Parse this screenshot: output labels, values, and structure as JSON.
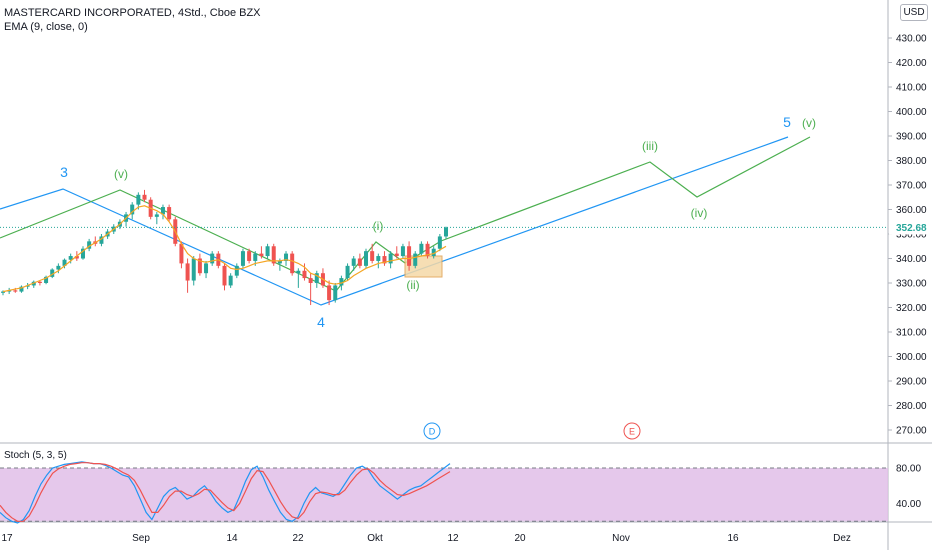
{
  "header": {
    "symbol_line": "MASTERCARD INCORPORATED, 4Std., Cboe BZX",
    "indicator_line": "EMA (9, close, 0)",
    "currency_button": "USD",
    "stoch_label": "Stoch (5, 3, 5)"
  },
  "colors": {
    "up": "#26a69a",
    "down": "#ef5350",
    "ema": "#f5a623",
    "wave_blue": "#2196f3",
    "wave_green": "#4caf50",
    "stoch_k": "#2196f3",
    "stoch_d": "#ef5350",
    "stoch_band": "#e1bee7"
  },
  "chart_data": [
    {
      "type": "candlestick",
      "ylim": [
        265,
        440
      ],
      "y_ticks": [
        "270.00",
        "280.00",
        "290.00",
        "300.00",
        "310.00",
        "320.00",
        "330.00",
        "340.00",
        "350.00",
        "360.00",
        "370.00",
        "380.00",
        "390.00",
        "400.00",
        "410.00",
        "420.00",
        "430.00"
      ],
      "x_ticks": [
        "17",
        "Sep",
        "14",
        "22",
        "Okt",
        "12",
        "20",
        "Nov",
        "16",
        "Dez"
      ],
      "last_price": "352.68",
      "candles": [
        [
          326,
          327,
          325,
          326.5
        ],
        [
          326.5,
          328,
          325.5,
          327
        ],
        [
          327,
          328,
          326,
          326.5
        ],
        [
          326.5,
          329,
          326,
          328.5
        ],
        [
          328.5,
          330,
          327.5,
          329
        ],
        [
          329,
          331,
          328,
          330.5
        ],
        [
          330.5,
          331,
          329,
          330
        ],
        [
          330,
          333,
          329.5,
          332.5
        ],
        [
          332.5,
          336,
          332,
          335.5
        ],
        [
          335.5,
          338,
          334,
          337
        ],
        [
          337,
          340,
          336,
          339.5
        ],
        [
          339.5,
          342,
          338,
          341
        ],
        [
          341,
          343,
          339,
          340
        ],
        [
          340,
          345,
          339.5,
          344
        ],
        [
          344,
          348,
          343,
          347
        ],
        [
          347,
          349,
          345,
          346
        ],
        [
          346,
          350,
          345,
          349
        ],
        [
          349,
          352,
          348,
          351
        ],
        [
          351,
          354,
          350,
          353
        ],
        [
          353,
          356,
          352,
          355
        ],
        [
          355,
          359,
          353,
          358
        ],
        [
          358,
          363,
          356,
          362
        ],
        [
          362,
          367,
          360,
          366
        ],
        [
          366,
          368,
          363,
          364
        ],
        [
          364,
          365,
          356,
          357
        ],
        [
          357,
          359,
          354,
          358
        ],
        [
          358,
          362,
          356,
          361
        ],
        [
          361,
          362,
          355,
          356
        ],
        [
          356,
          357,
          345,
          346
        ],
        [
          346,
          347,
          336,
          338
        ],
        [
          338,
          340,
          326,
          331
        ],
        [
          331,
          341,
          329,
          340
        ],
        [
          340,
          342,
          333,
          334
        ],
        [
          334,
          339,
          332,
          338
        ],
        [
          338,
          343,
          337,
          342
        ],
        [
          342,
          343,
          336,
          337
        ],
        [
          337,
          338,
          327,
          329
        ],
        [
          329,
          334,
          328,
          333
        ],
        [
          333,
          338,
          332,
          337
        ],
        [
          337,
          344,
          336,
          343
        ],
        [
          343,
          344,
          338,
          339
        ],
        [
          339,
          343,
          337,
          342
        ],
        [
          342,
          345,
          340,
          341
        ],
        [
          341,
          346,
          340,
          345
        ],
        [
          345,
          346,
          337,
          338
        ],
        [
          338,
          340,
          335,
          339
        ],
        [
          339,
          343,
          337,
          342
        ],
        [
          342,
          343,
          333,
          334
        ],
        [
          334,
          336,
          328,
          335
        ],
        [
          335,
          338,
          331,
          332
        ],
        [
          332,
          334,
          321,
          330
        ],
        [
          330,
          335,
          328,
          334
        ],
        [
          334,
          336,
          328,
          329
        ],
        [
          329,
          331,
          321,
          323
        ],
        [
          323,
          330,
          322,
          329
        ],
        [
          329,
          333,
          327,
          332
        ],
        [
          332,
          338,
          331,
          337
        ],
        [
          337,
          341,
          335,
          340
        ],
        [
          340,
          342,
          336,
          337
        ],
        [
          337,
          344,
          336,
          343
        ],
        [
          343,
          346,
          338,
          339
        ],
        [
          339,
          342,
          336,
          341
        ],
        [
          341,
          343,
          337,
          338
        ],
        [
          338,
          343,
          336,
          342
        ],
        [
          342,
          345,
          340,
          341
        ],
        [
          341,
          346,
          340,
          345
        ],
        [
          345,
          347,
          335,
          337
        ],
        [
          337,
          343,
          336,
          342
        ],
        [
          342,
          347,
          341,
          346
        ],
        [
          346,
          347,
          340,
          341
        ],
        [
          341,
          345,
          340,
          344
        ],
        [
          344,
          350,
          343,
          349
        ],
        [
          349,
          353,
          348,
          352.68
        ]
      ],
      "ema": [
        326.5,
        327,
        327.5,
        328,
        329,
        330,
        331,
        332,
        333.5,
        335,
        337,
        339,
        341,
        343,
        345,
        346.5,
        348,
        350,
        352,
        354,
        356.5,
        359,
        361,
        361.5,
        360.5,
        359.5,
        358,
        355,
        351,
        346,
        342,
        340,
        339,
        338.5,
        339,
        339.5,
        338,
        336,
        335.5,
        336,
        337,
        338,
        338.5,
        339,
        339,
        339,
        339.5,
        339,
        338,
        336.5,
        334,
        333,
        331.5,
        330,
        329.5,
        330,
        331,
        333,
        334.5,
        336,
        337,
        338,
        338.5,
        339,
        339.5,
        340,
        340,
        340.5,
        341,
        341.5,
        342,
        343.5,
        345
      ],
      "wave_labels_blue": [
        "3",
        "4",
        "5"
      ],
      "wave_labels_green": [
        "(v)",
        "(i)",
        "(ii)",
        "(iii)",
        "(iv)",
        "(v)"
      ],
      "event_markers": [
        "D",
        "E"
      ]
    },
    {
      "type": "line",
      "title": "Stoch (5, 3, 5)",
      "ylim": [
        15,
        105
      ],
      "y_ticks": [
        "80.00",
        "40.00"
      ],
      "band": [
        20,
        80
      ],
      "series": [
        {
          "name": "%K",
          "values": [
            30,
            24,
            20,
            18,
            22,
            32,
            48,
            62,
            72,
            80,
            82,
            84,
            85,
            86,
            87,
            86,
            85,
            85,
            83,
            80,
            76,
            72,
            70,
            60,
            45,
            30,
            22,
            35,
            48,
            55,
            58,
            52,
            45,
            48,
            55,
            60,
            52,
            42,
            35,
            30,
            33,
            48,
            65,
            78,
            82,
            70,
            55,
            42,
            30,
            22,
            20,
            25,
            40,
            52,
            58,
            52,
            50,
            48,
            52,
            62,
            72,
            80,
            82,
            78,
            68,
            60,
            55,
            50,
            45,
            50,
            55,
            58,
            60,
            65,
            70,
            75,
            80,
            85
          ]
        },
        {
          "name": "%D",
          "values": [
            38,
            30,
            24,
            20,
            20,
            26,
            38,
            52,
            64,
            74,
            79,
            82,
            84,
            85,
            86,
            86,
            85,
            85,
            84,
            82,
            79,
            75,
            72,
            66,
            55,
            42,
            30,
            30,
            38,
            48,
            54,
            54,
            50,
            48,
            51,
            56,
            55,
            48,
            41,
            35,
            32,
            40,
            54,
            68,
            77,
            76,
            66,
            54,
            42,
            32,
            25,
            23,
            30,
            42,
            51,
            53,
            52,
            50,
            50,
            55,
            64,
            72,
            78,
            79,
            74,
            66,
            60,
            55,
            50,
            49,
            51,
            54,
            57,
            60,
            64,
            68,
            72,
            76
          ]
        }
      ]
    }
  ]
}
